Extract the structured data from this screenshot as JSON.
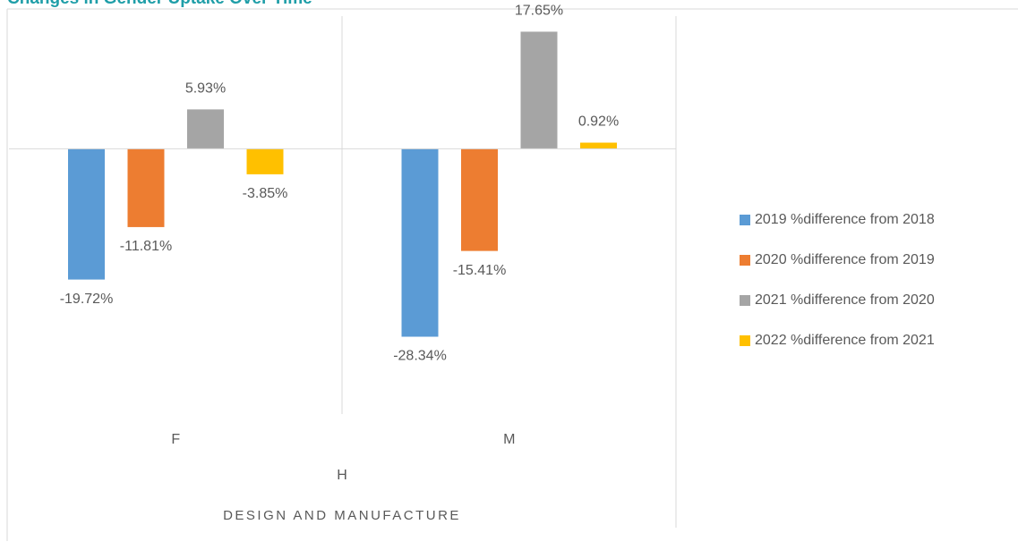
{
  "chart_data": {
    "type": "bar",
    "title": "Changes in Gender Uptake Over Time",
    "categories": [
      "F",
      "M"
    ],
    "group_label": "H",
    "axis_label": "DESIGN AND MANUFACTURE",
    "ylim": [
      -40,
      20
    ],
    "series": [
      {
        "name": "2019 %difference from 2018",
        "color": "#5b9bd5",
        "values": [
          -19.72,
          -28.34
        ],
        "value_labels": [
          "-19.72%",
          "-28.34%"
        ]
      },
      {
        "name": "2020 %difference from 2019",
        "color": "#ed7d31",
        "values": [
          -11.81,
          -15.41
        ],
        "value_labels": [
          "-11.81%",
          "-15.41%"
        ]
      },
      {
        "name": "2021 %difference from 2020",
        "color": "#a5a5a5",
        "values": [
          5.93,
          17.65
        ],
        "value_labels": [
          "5.93%",
          "17.65%"
        ]
      },
      {
        "name": "2022 %difference from 2021",
        "color": "#ffc000",
        "values": [
          -3.85,
          0.92
        ],
        "value_labels": [
          "-3.85%",
          "0.92%"
        ]
      }
    ]
  }
}
